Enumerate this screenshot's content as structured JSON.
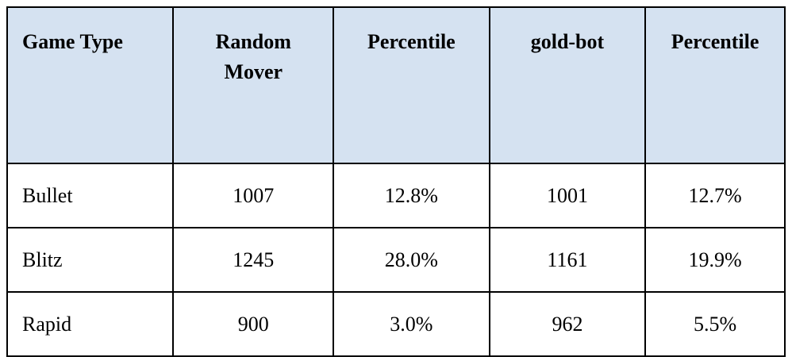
{
  "table": {
    "header": [
      "Game Type",
      "Random Mover",
      "Percentile",
      "gold-bot",
      "Percentile"
    ],
    "rows": [
      [
        "Bullet",
        "1007",
        "12.8%",
        "1001",
        "12.7%"
      ],
      [
        "Blitz",
        "1245",
        "28.0%",
        "1161",
        "19.9%"
      ],
      [
        "Rapid",
        "900",
        "3.0%",
        "962",
        "5.5%"
      ]
    ]
  }
}
